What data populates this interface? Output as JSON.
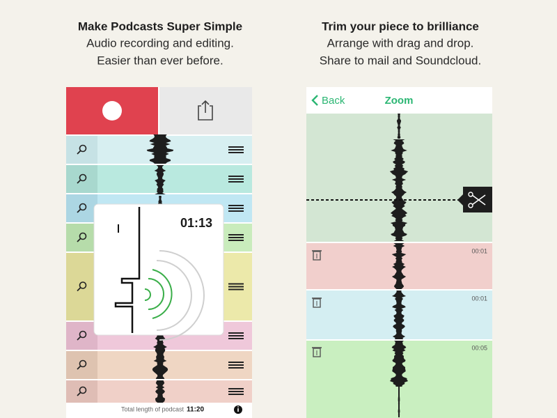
{
  "left": {
    "title": "Make Podcasts Super Simple",
    "lines": [
      "Audio recording and editing.",
      "Easier than ever before."
    ],
    "popup_time": "01:13",
    "footer_label": "Total length of podcast",
    "footer_time": "11:20"
  },
  "right": {
    "title": "Trim your piece to brilliance",
    "lines": [
      "Arrange with drag and drop.",
      "Share to mail and Soundcloud."
    ],
    "back": "Back",
    "nav_title": "Zoom",
    "clip_times": [
      "00:01",
      "00:01",
      "00:05"
    ]
  }
}
